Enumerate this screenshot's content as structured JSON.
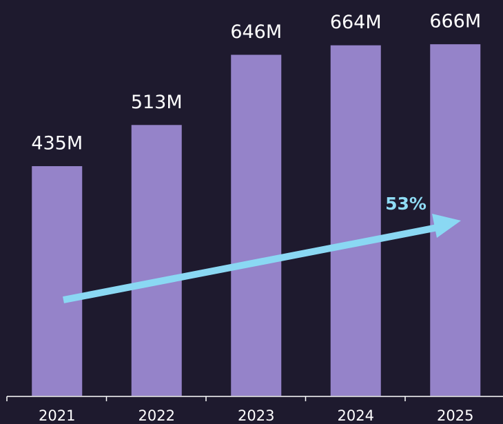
{
  "chart_data": {
    "type": "bar",
    "categories": [
      "2021",
      "2022",
      "2023",
      "2024",
      "2025"
    ],
    "values": [
      435,
      513,
      646,
      664,
      666
    ],
    "value_labels": [
      "435M",
      "513M",
      "646M",
      "664M",
      "666M"
    ],
    "color": "#9583c9",
    "annotation": "53%"
  }
}
